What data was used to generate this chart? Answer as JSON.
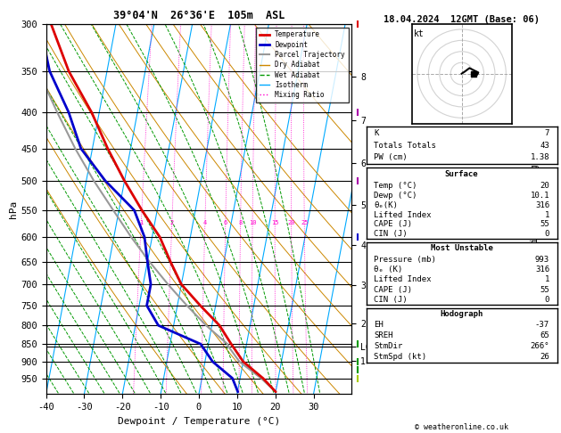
{
  "title_left": "39°04'N  26°36'E  105m  ASL",
  "title_right": "18.04.2024  12GMT (Base: 06)",
  "xlabel": "Dewpoint / Temperature (°C)",
  "temp_color": "#dd0000",
  "dewp_color": "#0000cc",
  "parcel_color": "#999999",
  "dry_adiabat_color": "#cc8800",
  "wet_adiabat_color": "#009900",
  "isotherm_color": "#00aaff",
  "mixing_ratio_color": "#ff00cc",
  "info_k": 7,
  "info_totals_totals": 43,
  "info_pw": "1.38",
  "surface_temp": 20,
  "surface_dewp": "10.1",
  "surface_theta_e": 316,
  "surface_lifted_index": 1,
  "surface_cape": 55,
  "surface_cin": 0,
  "mu_pressure": 993,
  "mu_theta_e": 316,
  "mu_lifted_index": 1,
  "mu_cape": 55,
  "mu_cin": 0,
  "hodo_eh": -37,
  "hodo_sreh": 65,
  "hodo_stmdir": "266°",
  "hodo_stmspd": 26,
  "copyright": "© weatheronline.co.uk",
  "lcl_p": 858,
  "skew_factor": 35.0,
  "mixing_ratios": [
    1,
    2,
    4,
    6,
    8,
    10,
    15,
    20,
    25
  ],
  "dry_adiabat_thetas": [
    270,
    280,
    290,
    300,
    310,
    320,
    330,
    340,
    350,
    360,
    380,
    400,
    420
  ],
  "wet_adiabat_t0s": [
    -40,
    -36,
    -32,
    -28,
    -24,
    -20,
    -16,
    -12,
    -8,
    -4,
    0,
    4,
    8,
    12,
    16,
    20,
    24,
    28,
    32
  ],
  "isotherm_temps": [
    -40,
    -30,
    -20,
    -10,
    0,
    10,
    20,
    30,
    40
  ],
  "p_levels_main": [
    300,
    350,
    400,
    450,
    500,
    550,
    600,
    650,
    700,
    750,
    800,
    850,
    900,
    950
  ],
  "temp_profile_p": [
    993,
    950,
    900,
    850,
    800,
    750,
    700,
    650,
    600,
    550,
    500,
    450,
    400,
    350,
    300
  ],
  "temp_profile_T": [
    20,
    16,
    10,
    6,
    2,
    -4,
    -10,
    -14,
    -18,
    -24,
    -30,
    -36,
    -42,
    -50,
    -57
  ],
  "dewp_profile_p": [
    993,
    950,
    900,
    850,
    800,
    750,
    700,
    650,
    600,
    550,
    500,
    450,
    400,
    350,
    300
  ],
  "dewp_profile_T": [
    10.1,
    8,
    2,
    -2,
    -14,
    -18,
    -18,
    -20,
    -22,
    -26,
    -35,
    -43,
    -48,
    -55,
    -60
  ],
  "parcel_profile_p": [
    993,
    950,
    900,
    858,
    850,
    800,
    750,
    700,
    650,
    600,
    550,
    500,
    450,
    400,
    350,
    300
  ],
  "parcel_profile_T": [
    20,
    15.5,
    9,
    5.5,
    5.0,
    -1.5,
    -7.5,
    -13.5,
    -19.5,
    -25.5,
    -31.5,
    -38,
    -44.5,
    -51,
    -58,
    -64
  ]
}
